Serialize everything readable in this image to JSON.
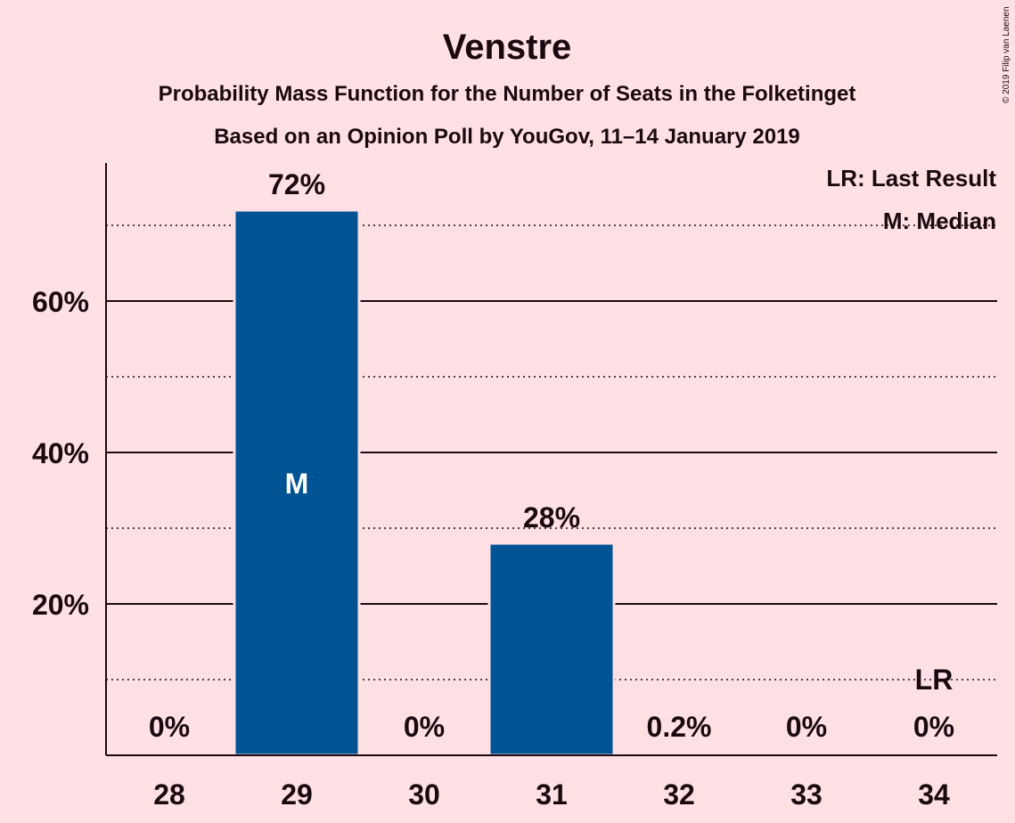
{
  "copyright": "© 2019 Filip van Laenen",
  "chart_data": {
    "type": "bar",
    "title": "Venstre",
    "subtitle": "Probability Mass Function for the Number of Seats in the Folketinget",
    "subtitle2": "Based on an Opinion Poll by YouGov, 11–14 January 2019",
    "categories": [
      "28",
      "29",
      "30",
      "31",
      "32",
      "33",
      "34"
    ],
    "values": [
      0,
      72,
      0,
      28,
      0.2,
      0,
      0
    ],
    "value_labels": [
      "0%",
      "72%",
      "0%",
      "28%",
      "0.2%",
      "0%",
      "0%"
    ],
    "yticks": [
      20,
      40,
      60
    ],
    "ytick_labels": [
      "20%",
      "40%",
      "60%"
    ],
    "minor_gridlines": [
      10,
      30,
      50,
      70
    ],
    "ylim": [
      0,
      78
    ],
    "bar_color": "#005494",
    "median_category": "29",
    "median_marker": "M",
    "last_result_category": "34",
    "last_result_marker": "LR",
    "legend": {
      "position": "top-right",
      "lines": [
        "LR: Last Result",
        "M: Median"
      ]
    }
  }
}
